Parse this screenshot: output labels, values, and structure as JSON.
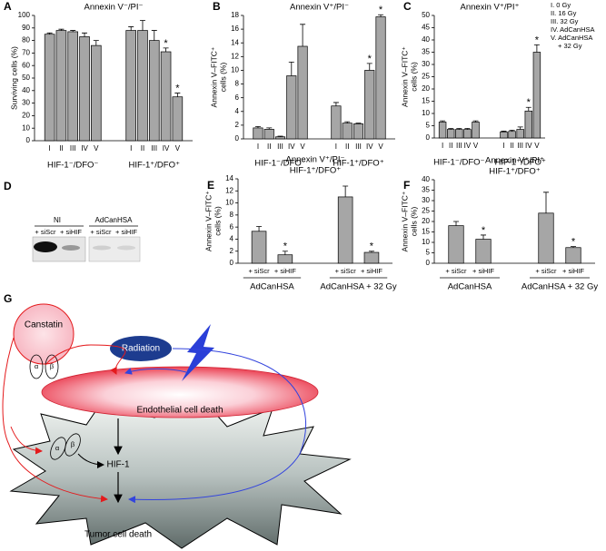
{
  "chart_data": [
    {
      "type": "bar",
      "panel": "A",
      "title": [
        "Annexin V⁻/PI⁻"
      ],
      "ylabel": [
        "Surviving cells (%)"
      ],
      "color": "#a6a6a6",
      "ylim": [
        0,
        100
      ],
      "yticks": [
        0,
        10,
        20,
        30,
        40,
        50,
        60,
        70,
        80,
        90,
        100
      ],
      "categories": [
        "I",
        "II",
        "III",
        "IV",
        "V"
      ],
      "groups": [
        {
          "label": "HIF-1⁻/DFO⁻",
          "values": [
            85,
            88,
            87,
            83,
            76
          ],
          "errors": [
            1,
            1,
            1,
            3,
            4
          ],
          "annotations": [
            null,
            null,
            null,
            null,
            null
          ]
        },
        {
          "label": "HIF-1⁺/DFO⁺",
          "values": [
            88,
            88,
            80,
            71,
            35
          ],
          "errors": [
            3,
            8,
            8,
            3,
            3
          ],
          "annotations": [
            null,
            null,
            null,
            "*",
            "*"
          ]
        }
      ]
    },
    {
      "type": "bar",
      "panel": "B",
      "title": [
        "Annexin V⁺/PI⁻"
      ],
      "ylabel": [
        "Annexin V–FITC⁺",
        "cells (%)"
      ],
      "color": "#a6a6a6",
      "ylim": [
        0,
        18
      ],
      "yticks": [
        0,
        2,
        4,
        6,
        8,
        10,
        12,
        14,
        16,
        18
      ],
      "categories": [
        "I",
        "II",
        "III",
        "IV",
        "V"
      ],
      "groups": [
        {
          "label": "HIF-1⁻/DFO⁻",
          "values": [
            1.6,
            1.4,
            0.3,
            9.2,
            13.5
          ],
          "errors": [
            0.2,
            0.2,
            0.1,
            2,
            3.2
          ],
          "annotations": [
            null,
            null,
            null,
            null,
            null
          ]
        },
        {
          "label": "HIF-1⁺/DFO⁺",
          "values": [
            4.8,
            2.3,
            2.2,
            10,
            17.8
          ],
          "errors": [
            0.5,
            0.2,
            0.1,
            1,
            0.3
          ],
          "annotations": [
            null,
            null,
            null,
            "*",
            "*"
          ]
        }
      ]
    },
    {
      "type": "bar",
      "panel": "C",
      "title": [
        "Annexin V⁺/PI⁺"
      ],
      "ylabel": [
        "Annexin V–FITC⁺",
        "cells (%)"
      ],
      "color": "#a6a6a6",
      "ylim": [
        0,
        50
      ],
      "yticks": [
        0,
        5,
        10,
        15,
        20,
        25,
        30,
        35,
        40,
        45,
        50
      ],
      "categories": [
        "I",
        "II",
        "III",
        "IV",
        "V"
      ],
      "key": [
        "I. 0 Gy",
        "II. 16 Gy",
        "III. 32 Gy",
        "IV. AdCanHSA",
        "V. AdCanHSA",
        "+ 32 Gy"
      ],
      "groups": [
        {
          "label": "HIF-1⁻/DFO⁻",
          "values": [
            6.5,
            3.5,
            3.5,
            3.5,
            6.5
          ],
          "errors": [
            0.5,
            0.4,
            0.4,
            0.4,
            0.5
          ],
          "annotations": [
            null,
            null,
            null,
            null,
            null
          ]
        },
        {
          "label": "HIF-1⁺/DFO⁺",
          "values": [
            2.5,
            2.7,
            3.5,
            11,
            35
          ],
          "errors": [
            0.3,
            0.5,
            1,
            1.5,
            3
          ],
          "annotations": [
            null,
            null,
            null,
            "*",
            "*"
          ]
        }
      ]
    },
    {
      "type": "bar",
      "panel": "E",
      "title": [
        "Annexin V⁺/PI⁻",
        "HIF-1⁺/DFO⁺"
      ],
      "ylabel": [
        "Annexin V–FITC⁺",
        "cells (%)"
      ],
      "color": "#a6a6a6",
      "ylim": [
        0,
        14
      ],
      "yticks": [
        0,
        2,
        4,
        6,
        8,
        10,
        12,
        14
      ],
      "group_underline": true,
      "categories": [
        "+ siScr",
        "+ siHIF"
      ],
      "groups": [
        {
          "label": "AdCanHSA",
          "values": [
            5.3,
            1.4
          ],
          "errors": [
            0.8,
            0.6
          ],
          "annotations": [
            null,
            "*"
          ]
        },
        {
          "label": "AdCanHSA + 32 Gy",
          "values": [
            11,
            1.8
          ],
          "errors": [
            1.8,
            0.2
          ],
          "annotations": [
            null,
            "*"
          ]
        }
      ]
    },
    {
      "type": "bar",
      "panel": "F",
      "title": [
        "Annexin V⁺/PI⁺",
        "HIF-1⁺/DFO⁺"
      ],
      "ylabel": [
        "Annexin V–FITC⁺",
        "cells (%)"
      ],
      "color": "#a6a6a6",
      "ylim": [
        0,
        40
      ],
      "yticks": [
        0,
        5,
        10,
        15,
        20,
        25,
        30,
        35,
        40
      ],
      "group_underline": true,
      "categories": [
        "+ siScr",
        "+ siHIF"
      ],
      "groups": [
        {
          "label": "AdCanHSA",
          "values": [
            18,
            11.5
          ],
          "errors": [
            2,
            2
          ],
          "annotations": [
            null,
            "*"
          ]
        },
        {
          "label": "AdCanHSA + 32 Gy",
          "values": [
            24,
            7.5
          ],
          "errors": [
            10,
            0.5
          ],
          "annotations": [
            null,
            "*"
          ]
        }
      ]
    }
  ],
  "blot": {
    "panel": "D",
    "lanes": [
      {
        "label": "NI",
        "treatments": [
          "+ siScr",
          "+ siHIF"
        ]
      },
      {
        "label": "AdCanHSA",
        "treatments": [
          "+ siScr",
          "+ siHIF"
        ]
      }
    ]
  },
  "diagram": {
    "panel": "G",
    "canstatin": "Canstatin",
    "integrin_1": [
      "α",
      "β"
    ],
    "radiation": "Radiation",
    "endothelial": "Endothelial cell death",
    "integrin_2": [
      "α",
      "β"
    ],
    "hif": "HIF-1",
    "tumor": "Tumor cell death"
  }
}
